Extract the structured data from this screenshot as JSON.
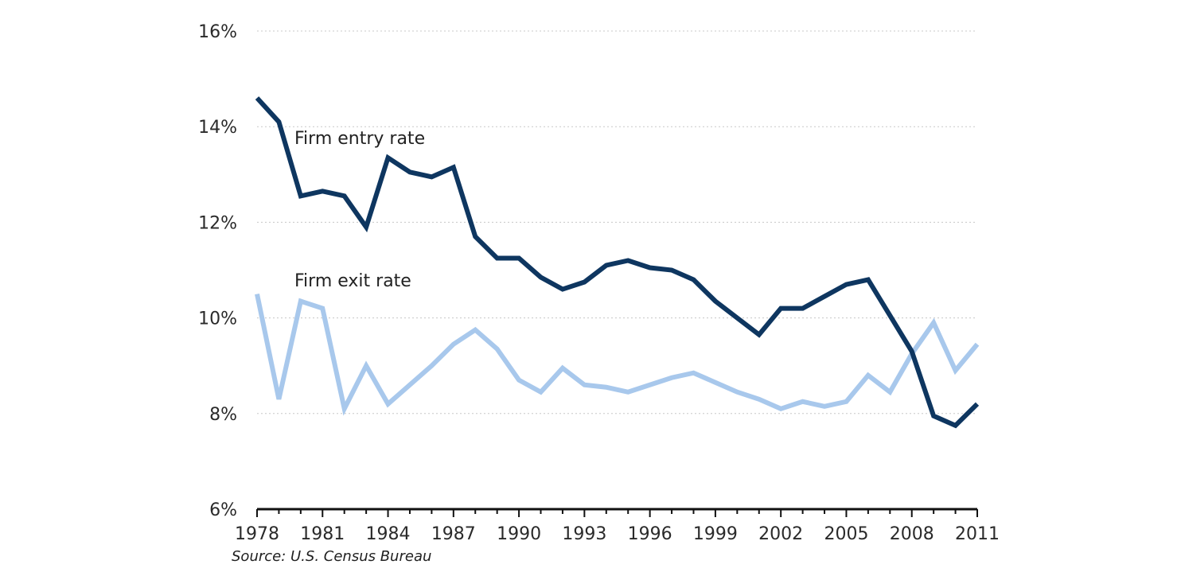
{
  "chart_data": {
    "type": "line",
    "title": "",
    "xlabel": "",
    "ylabel": "",
    "source": "Source: U.S. Census Bureau",
    "x": [
      1978,
      1979,
      1980,
      1981,
      1982,
      1983,
      1984,
      1985,
      1986,
      1987,
      1988,
      1989,
      1990,
      1991,
      1992,
      1993,
      1994,
      1995,
      1996,
      1997,
      1998,
      1999,
      2000,
      2001,
      2002,
      2003,
      2004,
      2005,
      2006,
      2007,
      2008,
      2009,
      2010,
      2011
    ],
    "x_tick_labels": [
      "1978",
      "1981",
      "1984",
      "1987",
      "1990",
      "1993",
      "1996",
      "1999",
      "2002",
      "2005",
      "2008",
      "2011"
    ],
    "y_tick_labels": [
      "6%",
      "8%",
      "10%",
      "12%",
      "14%",
      "16%"
    ],
    "ylim": [
      6,
      16
    ],
    "xlim": [
      1978,
      2011
    ],
    "grid": "horizontal dotted",
    "series": [
      {
        "name": "Firm entry rate",
        "color": "#0e3660",
        "values": [
          14.6,
          14.1,
          12.55,
          12.65,
          12.55,
          11.9,
          13.35,
          13.05,
          12.95,
          13.15,
          11.7,
          11.25,
          11.25,
          10.85,
          10.6,
          10.75,
          11.1,
          11.2,
          11.05,
          11.0,
          10.8,
          10.35,
          10.0,
          9.65,
          10.2,
          10.2,
          10.45,
          10.7,
          10.8,
          10.05,
          9.3,
          7.95,
          7.75,
          8.2
        ]
      },
      {
        "name": "Firm exit rate",
        "color": "#a8c8ec",
        "values": [
          10.5,
          8.3,
          10.35,
          10.2,
          8.1,
          9.0,
          8.2,
          8.6,
          9.0,
          9.45,
          9.75,
          9.35,
          8.7,
          8.45,
          8.95,
          8.6,
          8.55,
          8.45,
          8.6,
          8.75,
          8.85,
          8.65,
          8.45,
          8.3,
          8.1,
          8.25,
          8.15,
          8.25,
          8.8,
          8.45,
          9.25,
          9.9,
          8.9,
          9.45
        ]
      }
    ]
  }
}
